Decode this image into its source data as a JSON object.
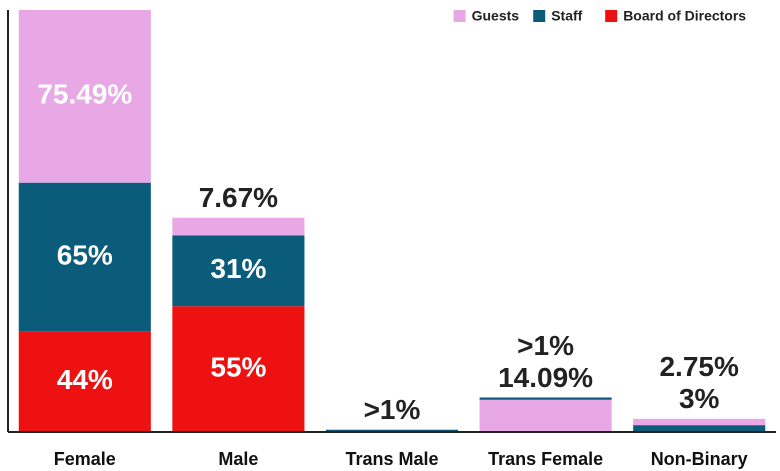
{
  "chart_data": {
    "type": "stacked-bar",
    "categories": [
      "Female",
      "Male",
      "Trans Male",
      "Trans Female",
      "Non-Binary"
    ],
    "series": [
      {
        "name": "Guests",
        "color": "#e8a8e6",
        "values": [
          75.49,
          7.67,
          null,
          14.09,
          2.75
        ],
        "value_labels": [
          "75.49%",
          "7.67%",
          null,
          "14.09%",
          "2.75%"
        ]
      },
      {
        "name": "Staff",
        "color": "#0b5c7a",
        "values": [
          65,
          31,
          1,
          1,
          3
        ],
        "value_labels": [
          "65%",
          "31%",
          ">1%",
          ">1%",
          "3%"
        ]
      },
      {
        "name": "Board of Directors",
        "color": "#ee1111",
        "values": [
          44,
          55,
          null,
          null,
          null
        ],
        "value_labels": [
          "44%",
          "55%",
          null,
          null,
          null
        ]
      }
    ],
    "stack_order": [
      [
        2,
        1,
        0
      ],
      [
        2,
        1,
        0
      ],
      [
        1
      ],
      [
        0,
        1
      ],
      [
        1,
        0
      ]
    ],
    "legend": "top-right"
  }
}
